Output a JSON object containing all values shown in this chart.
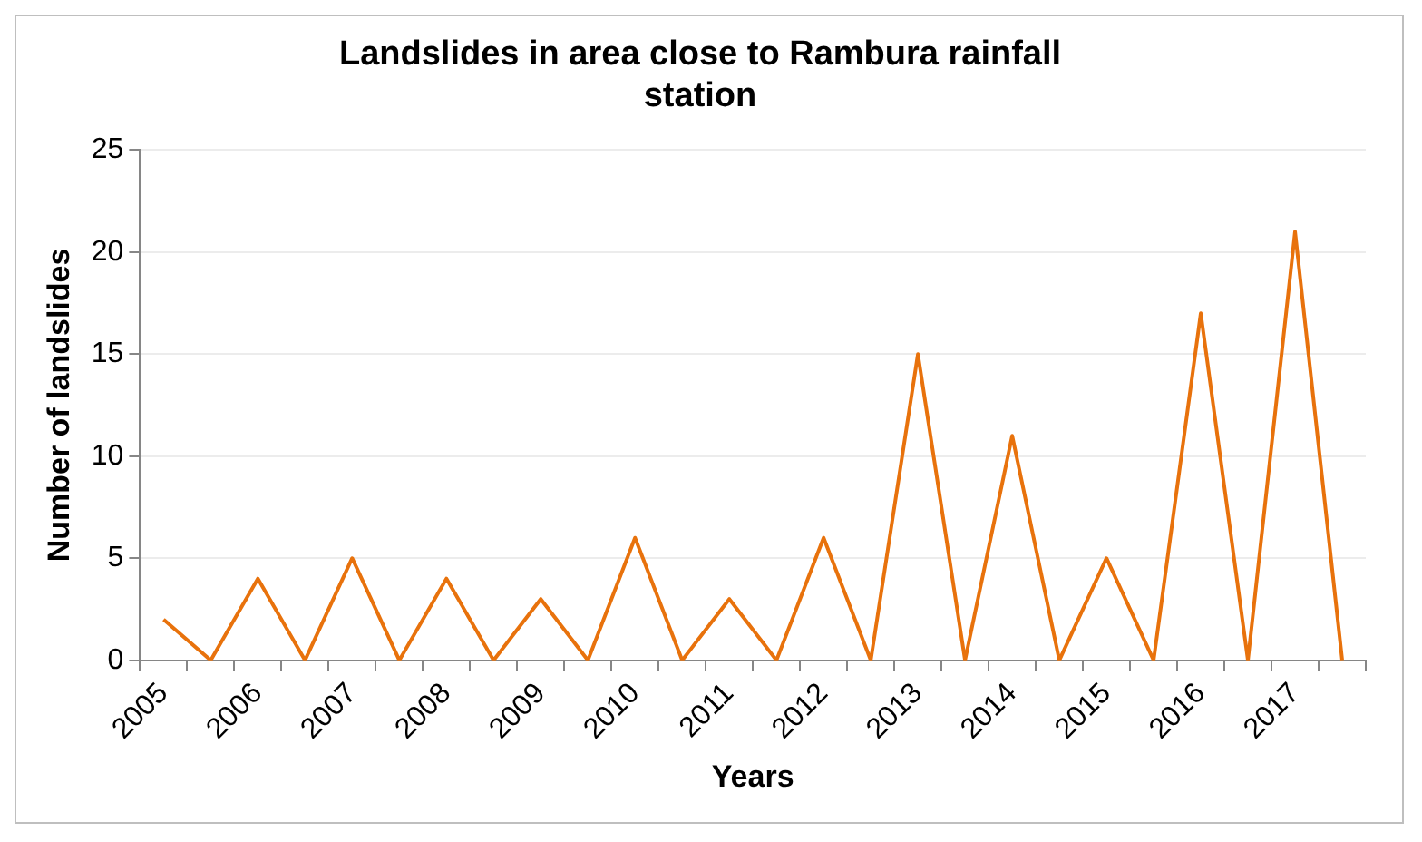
{
  "chart_data": {
    "type": "line",
    "title": "Landslides in area close to Rambura rainfall station",
    "xlabel": "Years",
    "ylabel": "Number of landslides",
    "categories": [
      "2005",
      null,
      "2006",
      null,
      "2007",
      null,
      "2008",
      null,
      "2009",
      null,
      "2010",
      null,
      "2011",
      null,
      "2012",
      null,
      "2013",
      null,
      "2014",
      null,
      "2015",
      null,
      "2016",
      null,
      "2017",
      null
    ],
    "series": [
      {
        "color": "#e8720c",
        "values": [
          2,
          0,
          4,
          0,
          5,
          0,
          4,
          0,
          3,
          0,
          6,
          0,
          3,
          0,
          6,
          0,
          15,
          0,
          11,
          0,
          5,
          0,
          17,
          0,
          21,
          0
        ]
      }
    ],
    "ylim": [
      0,
      25
    ],
    "yticks": [
      0,
      5,
      10,
      15,
      20,
      25
    ],
    "grid": "y",
    "legend": false,
    "marker": "none"
  }
}
